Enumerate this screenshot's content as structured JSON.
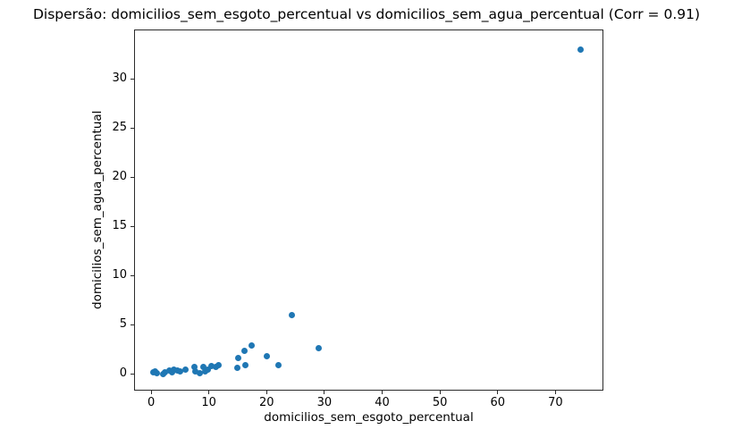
{
  "figure": {
    "background": "#ffffff",
    "spine_color": "#2b2b2b"
  },
  "chart_data": {
    "type": "scatter",
    "title": "Dispersão: domicilios_sem_esgoto_percentual vs domicilios_sem_agua_percentual (Corr = 0.91)",
    "xlabel": "domicilios_sem_esgoto_percentual",
    "ylabel": "domicilios_sem_agua_percentual",
    "correlation": 0.91,
    "marker_color": "#1f77b4",
    "grid": false,
    "legend": "none",
    "xlim": [
      -2.95,
      78.3
    ],
    "ylim": [
      -1.73,
      35.0
    ],
    "x_ticks": [
      0,
      10,
      20,
      30,
      40,
      50,
      60,
      70
    ],
    "y_ticks": [
      0,
      5,
      10,
      15,
      20,
      25,
      30
    ],
    "points": [
      [
        0.3,
        0.1
      ],
      [
        0.7,
        0.25
      ],
      [
        1.0,
        0.05
      ],
      [
        2.0,
        0.0
      ],
      [
        2.4,
        0.15
      ],
      [
        3.2,
        0.3
      ],
      [
        3.6,
        0.1
      ],
      [
        3.9,
        0.45
      ],
      [
        4.5,
        0.3
      ],
      [
        5.0,
        0.2
      ],
      [
        6.0,
        0.4
      ],
      [
        7.5,
        0.65
      ],
      [
        7.7,
        0.2
      ],
      [
        8.4,
        0.05
      ],
      [
        9.1,
        0.65
      ],
      [
        9.3,
        0.2
      ],
      [
        9.8,
        0.45
      ],
      [
        10.5,
        0.8
      ],
      [
        11.2,
        0.65
      ],
      [
        11.7,
        0.9
      ],
      [
        14.9,
        0.55
      ],
      [
        15.1,
        1.55
      ],
      [
        16.2,
        2.3
      ],
      [
        16.3,
        0.9
      ],
      [
        17.4,
        2.85
      ],
      [
        20.0,
        1.8
      ],
      [
        22.0,
        0.85
      ],
      [
        24.3,
        6.0
      ],
      [
        29.0,
        2.55
      ],
      [
        74.3,
        33.0
      ]
    ]
  }
}
